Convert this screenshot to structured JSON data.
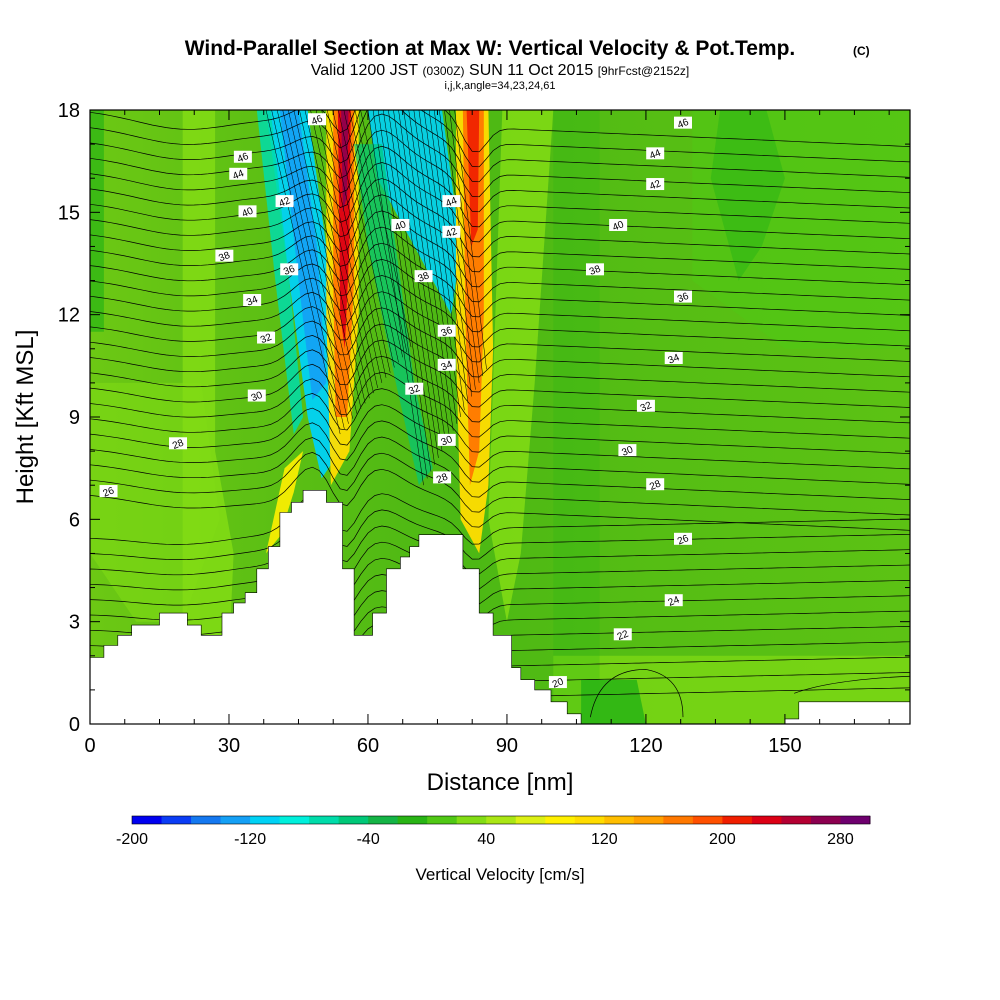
{
  "chart_data": {
    "type": "heatmap",
    "title": "Wind-Parallel Section at Max W: Vertical Velocity & Pot.Temp.",
    "title_mark": "(C)",
    "subtitle": {
      "valid_prefix": "Valid 1200 JST",
      "utc": "(0300Z)",
      "date": "SUN 11 Oct 2015",
      "forecast": "[9hrFcst@2152z]"
    },
    "grid_info": "i,j,k,angle=34,23,24,61",
    "xlabel": "Distance [nm]",
    "ylabel": "Height [Kft MSL]",
    "xlim": [
      0,
      177
    ],
    "ylim": [
      0,
      18
    ],
    "xticks": [
      0,
      30,
      60,
      90,
      120,
      150
    ],
    "yticks": [
      0,
      3,
      6,
      9,
      12,
      15,
      18
    ],
    "colorbar": {
      "label": "Vertical Velocity [cm/s]",
      "min": -200,
      "max": 300,
      "step": 20,
      "tick_labels": [
        -200,
        -120,
        -40,
        40,
        120,
        200,
        280
      ],
      "colors": [
        "#0000f0",
        "#0a3cf5",
        "#1478f0",
        "#14a0f5",
        "#00d2f5",
        "#00f0dc",
        "#00dcaa",
        "#00c878",
        "#14b446",
        "#28b414",
        "#50c814",
        "#82dc14",
        "#aae614",
        "#dcf014",
        "#fff000",
        "#ffdc00",
        "#ffbe00",
        "#ffa000",
        "#ff7800",
        "#ff5000",
        "#f01e00",
        "#dc0014",
        "#b40032",
        "#8c0050",
        "#6e006e"
      ]
    },
    "overlay": {
      "name": "Pot.Temp.",
      "contour_interval": 1,
      "labeled_values": [
        20,
        22,
        24,
        26,
        28,
        30,
        32,
        34,
        36,
        38,
        40,
        42,
        44,
        46
      ]
    },
    "terrain_profile": [
      [
        0,
        1.95
      ],
      [
        3,
        1.95
      ],
      [
        3,
        2.3
      ],
      [
        6,
        2.3
      ],
      [
        6,
        2.6
      ],
      [
        9,
        2.6
      ],
      [
        9,
        2.9
      ],
      [
        15,
        2.9
      ],
      [
        15,
        3.25
      ],
      [
        21,
        3.25
      ],
      [
        21,
        2.9
      ],
      [
        24,
        2.9
      ],
      [
        24,
        2.6
      ],
      [
        28.5,
        2.6
      ],
      [
        28.5,
        3.25
      ],
      [
        31,
        3.25
      ],
      [
        31,
        3.55
      ],
      [
        33.5,
        3.55
      ],
      [
        33.5,
        3.85
      ],
      [
        36,
        3.85
      ],
      [
        36,
        4.55
      ],
      [
        38.5,
        4.55
      ],
      [
        38.5,
        5.2
      ],
      [
        41,
        5.2
      ],
      [
        41,
        6.2
      ],
      [
        43.5,
        6.2
      ],
      [
        43.5,
        6.5
      ],
      [
        46,
        6.5
      ],
      [
        46,
        6.85
      ],
      [
        51,
        6.85
      ],
      [
        51,
        6.5
      ],
      [
        54.5,
        6.5
      ],
      [
        54.5,
        4.55
      ],
      [
        57,
        4.55
      ],
      [
        57,
        2.6
      ],
      [
        61,
        2.6
      ],
      [
        61,
        3.25
      ],
      [
        64,
        3.25
      ],
      [
        64,
        4.55
      ],
      [
        67,
        4.55
      ],
      [
        67,
        4.9
      ],
      [
        69,
        4.9
      ],
      [
        69,
        5.2
      ],
      [
        71,
        5.2
      ],
      [
        71,
        5.55
      ],
      [
        80.5,
        5.55
      ],
      [
        80.5,
        4.55
      ],
      [
        84,
        4.55
      ],
      [
        84,
        3.25
      ],
      [
        87,
        3.25
      ],
      [
        87,
        2.6
      ],
      [
        91,
        2.6
      ],
      [
        91,
        1.65
      ],
      [
        93,
        1.65
      ],
      [
        93,
        1.3
      ],
      [
        96,
        1.3
      ],
      [
        96,
        1.0
      ],
      [
        99.5,
        1.0
      ],
      [
        99.5,
        0.65
      ],
      [
        103,
        0.65
      ],
      [
        103,
        0.3
      ],
      [
        106,
        0.3
      ],
      [
        106,
        0.0
      ],
      [
        150,
        0.0
      ],
      [
        150,
        0.15
      ],
      [
        153,
        0.15
      ],
      [
        153,
        0.65
      ],
      [
        177,
        0.65
      ]
    ]
  }
}
